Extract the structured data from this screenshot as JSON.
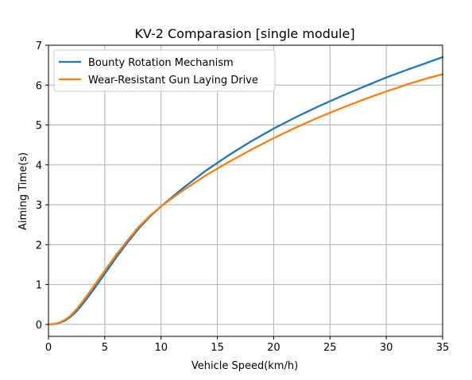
{
  "chart_data": {
    "type": "line",
    "title": "KV-2 Comparasion [single module]",
    "xlabel": "Vehicle Speed(km/h)",
    "ylabel": "Aiming Time(s)",
    "xlim": [
      0,
      35
    ],
    "ylim": [
      -0.3,
      7.0
    ],
    "xticks": [
      0,
      5,
      10,
      15,
      20,
      25,
      30,
      35
    ],
    "yticks": [
      0,
      1,
      2,
      3,
      4,
      5,
      6,
      7
    ],
    "grid": true,
    "legend_position": "upper-left",
    "series": [
      {
        "name": "Bounty Rotation Mechanism",
        "color": "#1f77b4",
        "x": [
          0,
          0.5,
          1,
          1.5,
          2,
          2.5,
          3,
          3.5,
          4,
          4.5,
          5,
          6,
          7,
          8,
          9,
          10,
          12,
          14,
          16,
          18,
          20,
          22,
          24,
          26,
          28,
          30,
          32,
          34,
          35
        ],
        "y": [
          0,
          0.01,
          0.04,
          0.1,
          0.2,
          0.33,
          0.5,
          0.68,
          0.87,
          1.07,
          1.27,
          1.67,
          2.05,
          2.4,
          2.7,
          2.96,
          3.43,
          3.86,
          4.24,
          4.59,
          4.91,
          5.2,
          5.47,
          5.72,
          5.96,
          6.19,
          6.4,
          6.6,
          6.7
        ]
      },
      {
        "name": "Wear-Resistant Gun Laying Drive",
        "color": "#ff7f0e",
        "x": [
          0,
          0.5,
          1,
          1.5,
          2,
          2.5,
          3,
          3.5,
          4,
          4.5,
          5,
          6,
          7,
          8,
          9,
          10,
          12,
          14,
          16,
          18,
          20,
          22,
          24,
          26,
          28,
          30,
          32,
          34,
          35
        ],
        "y": [
          0,
          0.01,
          0.05,
          0.12,
          0.23,
          0.38,
          0.56,
          0.75,
          0.95,
          1.15,
          1.35,
          1.74,
          2.1,
          2.44,
          2.72,
          2.96,
          3.37,
          3.74,
          4.07,
          4.38,
          4.67,
          4.94,
          5.19,
          5.42,
          5.64,
          5.84,
          6.03,
          6.2,
          6.27
        ]
      }
    ]
  }
}
